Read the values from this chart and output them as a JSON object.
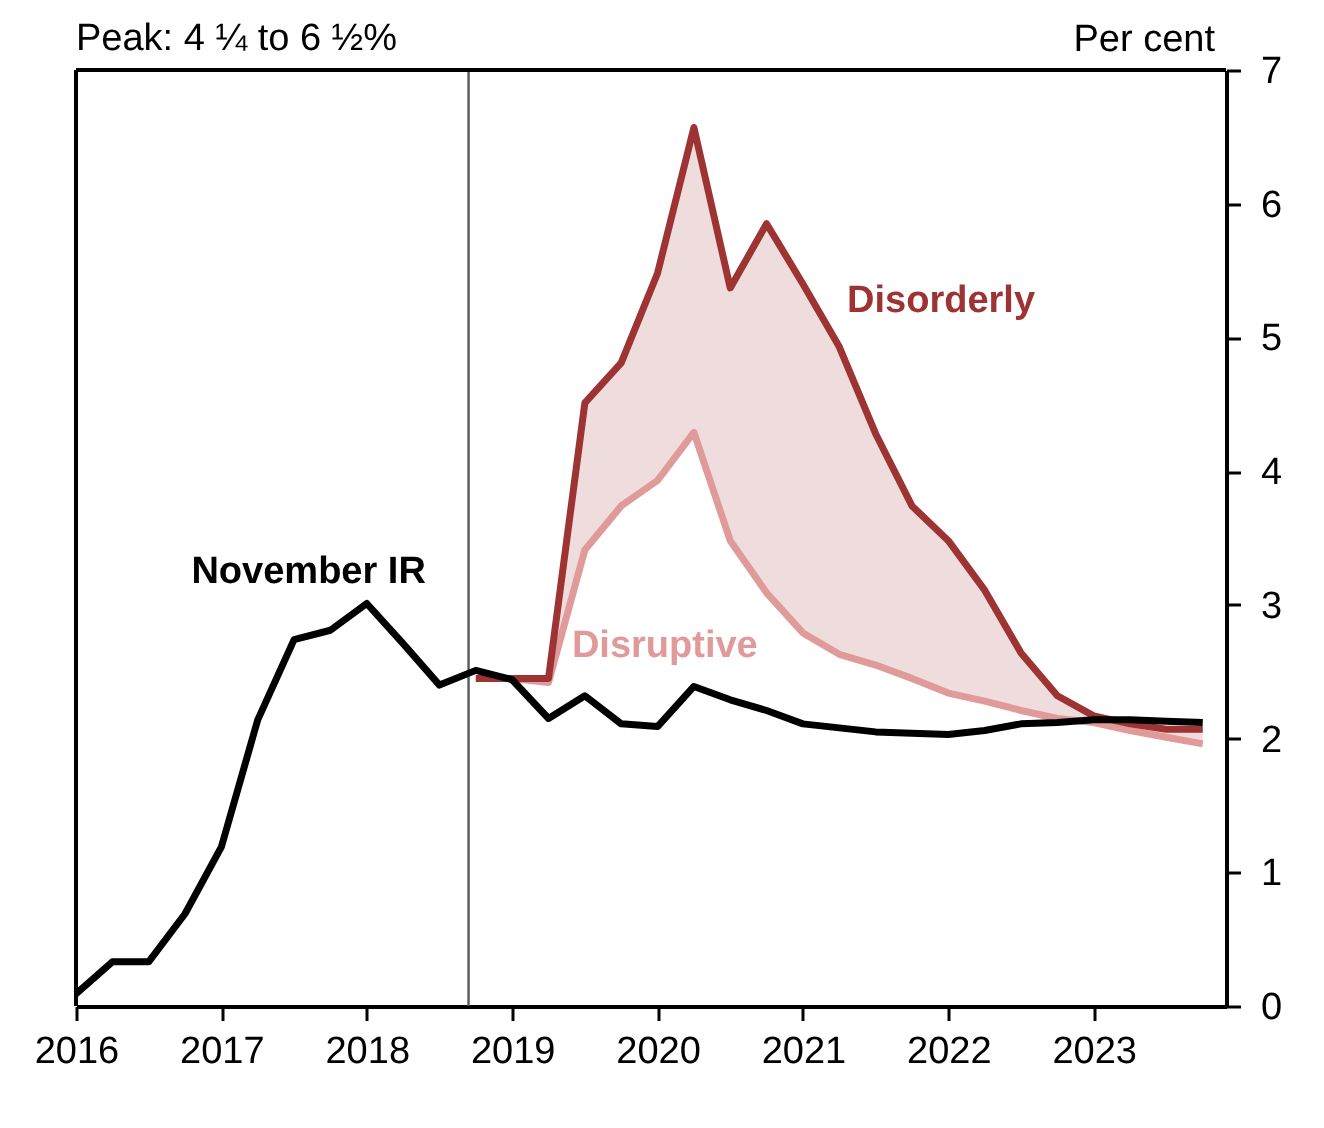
{
  "chart_data": {
    "type": "line",
    "title": "Peak: 4 ¼ to 6 ½%",
    "ylabel": "Per cent",
    "x": [
      2016,
      2016.25,
      2016.5,
      2016.75,
      2017,
      2017.25,
      2017.5,
      2017.75,
      2018,
      2018.25,
      2018.5,
      2018.75,
      2019,
      2019.25,
      2019.5,
      2019.75,
      2020,
      2020.25,
      2020.5,
      2020.75,
      2021,
      2021.25,
      2021.5,
      2021.75,
      2022,
      2022.25,
      2022.5,
      2022.75,
      2023,
      2023.25,
      2023.5,
      2023.75
    ],
    "series": [
      {
        "name": "November IR",
        "color": "#000000",
        "values": [
          0.09,
          0.33,
          0.33,
          0.69,
          1.19,
          2.14,
          2.74,
          2.81,
          3.01,
          2.71,
          2.4,
          2.51,
          2.44,
          2.15,
          2.32,
          2.11,
          2.09,
          2.39,
          2.29,
          2.21,
          2.11,
          2.08,
          2.05,
          2.04,
          2.03,
          2.06,
          2.11,
          2.12,
          2.14,
          2.14,
          2.13,
          2.12
        ]
      },
      {
        "name": "Disruptive",
        "color": "#e09a9a",
        "values": [
          null,
          null,
          null,
          null,
          null,
          null,
          null,
          null,
          null,
          null,
          null,
          2.45,
          2.45,
          2.42,
          3.41,
          3.74,
          3.93,
          4.29,
          3.48,
          3.09,
          2.79,
          2.63,
          2.55,
          2.45,
          2.34,
          2.28,
          2.21,
          2.15,
          2.12,
          2.06,
          2.01,
          1.96
        ]
      },
      {
        "name": "Disorderly",
        "color": "#9e3333",
        "values": [
          null,
          null,
          null,
          null,
          null,
          null,
          null,
          null,
          null,
          null,
          null,
          2.45,
          2.45,
          2.45,
          4.51,
          4.81,
          5.48,
          6.57,
          5.37,
          5.85,
          5.4,
          4.93,
          4.28,
          3.74,
          3.48,
          3.11,
          2.64,
          2.32,
          2.17,
          2.11,
          2.07,
          2.07
        ],
        "lower": [
          null,
          null,
          null,
          null,
          null,
          null,
          null,
          null,
          null,
          null,
          null,
          2.45,
          2.45,
          2.42,
          3.41,
          3.74,
          3.93,
          4.29,
          3.48,
          3.09,
          2.79,
          2.63,
          2.55,
          2.45,
          2.34,
          2.28,
          2.21,
          2.15,
          2.12,
          2.06,
          2.01,
          1.96
        ],
        "upper": [
          null,
          null,
          null,
          null,
          null,
          null,
          null,
          null,
          null,
          null,
          null,
          2.45,
          2.45,
          2.45,
          4.51,
          4.81,
          5.48,
          6.57,
          5.37,
          5.85,
          5.4,
          4.93,
          4.28,
          3.74,
          3.48,
          3.11,
          2.64,
          2.32,
          2.17,
          2.11,
          2.07,
          2.07
        ]
      }
    ],
    "xlim": [
      2016,
      2023.91
    ],
    "xticks": [
      2016,
      2017,
      2018,
      2019,
      2020,
      2021,
      2022,
      2023
    ],
    "ylim": [
      0,
      7
    ],
    "yticks": [
      0,
      1,
      2,
      3,
      4,
      5,
      6,
      7
    ],
    "ref_lines": [
      {
        "axis": "x",
        "value": 2018.7,
        "color": "#595959"
      }
    ],
    "grid": false,
    "marker": "none",
    "line_style": "solid"
  }
}
